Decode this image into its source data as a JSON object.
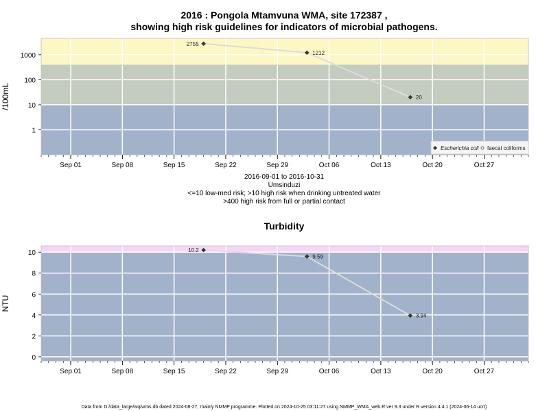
{
  "title_line1": "2016 : Pongola Mtamvuna WMA, site 172387 ,",
  "title_line2": "showing high risk guidelines for indicators of microbial pathogens.",
  "caption_lines": [
    "2016-09-01 to 2016-10-31",
    "Umsinduzi",
    "<=10 low-med risk; >10 high risk when drinking untreated water",
    ">400 high risk from full or partial contact"
  ],
  "footer": "Data from D:/data_large/wq/wms.db dated 2024-08-27, mainly NMMP programme. Plotted on 2024-10-25 03:11:27 using NMMP_WMA_web.R ver 9.3 under R version 4.4.1 (2024-06-14 ucrt)",
  "colors": {
    "panel_low": "#a2b2cb",
    "panel_mid": "#c4ccc0",
    "panel_high": "#fdf7c4",
    "panel_pink": "#f8d5f8",
    "grid": "#ffffff",
    "line": "#dcdcdc",
    "point": "#2f3a2f"
  },
  "chart_data": [
    {
      "type": "line",
      "ylabel": "/100mL",
      "yscale": "log",
      "yticks": [
        1,
        10,
        100,
        1000
      ],
      "ylim": [
        0.1,
        4500
      ],
      "xlim": [
        "2016-08-28",
        "2016-11-02"
      ],
      "xticks": [
        "Sep 01",
        "Sep 08",
        "Sep 15",
        "Sep 22",
        "Sep 29",
        "Oct 06",
        "Oct 13",
        "Oct 20",
        "Oct 27"
      ],
      "xtick_dates": [
        "2016-09-01",
        "2016-09-08",
        "2016-09-15",
        "2016-09-22",
        "2016-09-29",
        "2016-10-06",
        "2016-10-13",
        "2016-10-20",
        "2016-10-27"
      ],
      "bands": [
        {
          "from": 0.1,
          "to": 10,
          "color": "panel_low"
        },
        {
          "from": 10,
          "to": 400,
          "color": "panel_mid"
        },
        {
          "from": 400,
          "to": 4500,
          "color": "panel_high"
        }
      ],
      "series": [
        {
          "name": "Escherichia coli",
          "x": [
            "2016-09-19",
            "2016-10-03",
            "2016-10-17"
          ],
          "y": [
            2755,
            1212,
            20
          ],
          "labels": [
            "2755",
            "1212",
            "20"
          ]
        }
      ],
      "legend": {
        "position": "bottom-right",
        "entries": [
          "Escherichia coli",
          "faecal coliforms"
        ]
      }
    },
    {
      "type": "line",
      "title": "Turbidity",
      "ylabel": "NTU",
      "yscale": "linear",
      "yticks": [
        0,
        2,
        4,
        6,
        8,
        10
      ],
      "ylim": [
        -0.4,
        10.6
      ],
      "xlim": [
        "2016-08-28",
        "2016-11-02"
      ],
      "xticks": [
        "Sep 01",
        "Sep 08",
        "Sep 15",
        "Sep 22",
        "Sep 29",
        "Oct 06",
        "Oct 13",
        "Oct 20",
        "Oct 27"
      ],
      "xtick_dates": [
        "2016-09-01",
        "2016-09-08",
        "2016-09-15",
        "2016-09-22",
        "2016-09-29",
        "2016-10-06",
        "2016-10-13",
        "2016-10-20",
        "2016-10-27"
      ],
      "bands": [
        {
          "from": -0.4,
          "to": 10,
          "color": "panel_low"
        },
        {
          "from": 10,
          "to": 10.6,
          "color": "panel_pink"
        }
      ],
      "series": [
        {
          "name": "",
          "x": [
            "2016-09-19",
            "2016-10-03",
            "2016-10-17"
          ],
          "y": [
            10.2,
            9.59,
            3.94
          ],
          "labels": [
            "10.2",
            "9.59",
            "3.94"
          ]
        }
      ]
    }
  ]
}
